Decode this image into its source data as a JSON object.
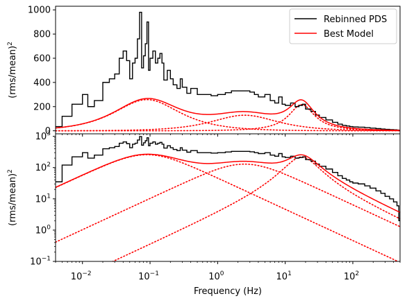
{
  "chart_data": {
    "type": "line",
    "legend": {
      "placement": "top-right",
      "entries": [
        {
          "label": "Rebinned PDS",
          "color": "#000000"
        },
        {
          "label": "Best Model",
          "color": "#ff0000"
        }
      ]
    },
    "xlabel": "Frequency (Hz)",
    "xscale": "log",
    "xlim": [
      0.004,
      500
    ],
    "xticks": [
      {
        "value": 0.01,
        "label": "10",
        "exp": "−2"
      },
      {
        "value": 0.1,
        "label": "10",
        "exp": "−1"
      },
      {
        "value": 1,
        "label": "10",
        "exp": "0"
      },
      {
        "value": 10,
        "label": "10",
        "exp": "1"
      },
      {
        "value": 100,
        "label": "10",
        "exp": "2"
      }
    ],
    "grid": false,
    "lorentzians": [
      {
        "norm": 600,
        "fwhm": 0.18,
        "centroid": 0
      },
      {
        "norm": 300,
        "fwhm": 5.0,
        "centroid": 0
      },
      {
        "norm": 140,
        "fwhm": 18,
        "centroid": 15
      }
    ],
    "model_line": {
      "name": "Best Model",
      "color": "#ff0000",
      "style": "solid"
    },
    "components_style": {
      "color": "#ff0000",
      "style": "dotted"
    },
    "data_line": {
      "name": "Rebinned PDS",
      "color": "#000000",
      "style": "steps"
    },
    "data_points": [
      [
        0.004,
        35
      ],
      [
        0.005,
        120
      ],
      [
        0.007,
        220
      ],
      [
        0.01,
        300
      ],
      [
        0.012,
        200
      ],
      [
        0.015,
        250
      ],
      [
        0.02,
        400
      ],
      [
        0.025,
        430
      ],
      [
        0.03,
        470
      ],
      [
        0.035,
        600
      ],
      [
        0.04,
        660
      ],
      [
        0.045,
        580
      ],
      [
        0.05,
        430
      ],
      [
        0.055,
        560
      ],
      [
        0.06,
        600
      ],
      [
        0.065,
        760
      ],
      [
        0.07,
        980
      ],
      [
        0.075,
        520
      ],
      [
        0.08,
        620
      ],
      [
        0.085,
        720
      ],
      [
        0.09,
        900
      ],
      [
        0.095,
        500
      ],
      [
        0.1,
        600
      ],
      [
        0.11,
        660
      ],
      [
        0.12,
        560
      ],
      [
        0.13,
        600
      ],
      [
        0.14,
        640
      ],
      [
        0.15,
        560
      ],
      [
        0.16,
        420
      ],
      [
        0.18,
        500
      ],
      [
        0.2,
        430
      ],
      [
        0.22,
        380
      ],
      [
        0.25,
        350
      ],
      [
        0.28,
        430
      ],
      [
        0.3,
        360
      ],
      [
        0.35,
        310
      ],
      [
        0.4,
        350
      ],
      [
        0.5,
        300
      ],
      [
        0.6,
        300
      ],
      [
        0.8,
        290
      ],
      [
        1.0,
        300
      ],
      [
        1.3,
        315
      ],
      [
        1.6,
        330
      ],
      [
        2.0,
        330
      ],
      [
        2.5,
        330
      ],
      [
        3.0,
        320
      ],
      [
        3.5,
        300
      ],
      [
        4.0,
        280
      ],
      [
        5.0,
        300
      ],
      [
        6.0,
        250
      ],
      [
        7.0,
        230
      ],
      [
        8.0,
        280
      ],
      [
        9.0,
        220
      ],
      [
        10,
        210
      ],
      [
        12,
        230
      ],
      [
        14,
        200
      ],
      [
        16,
        210
      ],
      [
        18,
        220
      ],
      [
        20,
        180
      ],
      [
        24,
        160
      ],
      [
        28,
        130
      ],
      [
        32,
        110
      ],
      [
        40,
        90
      ],
      [
        50,
        70
      ],
      [
        60,
        55
      ],
      [
        70,
        45
      ],
      [
        80,
        40
      ],
      [
        90,
        35
      ],
      [
        100,
        32
      ],
      [
        120,
        30
      ],
      [
        150,
        26
      ],
      [
        180,
        22
      ],
      [
        220,
        18
      ],
      [
        260,
        15
      ],
      [
        300,
        12
      ],
      [
        350,
        10
      ],
      [
        400,
        8
      ],
      [
        450,
        6
      ],
      [
        480,
        2
      ],
      [
        500,
        4
      ]
    ],
    "panels": [
      {
        "id": "linear",
        "ylabel": "(rms/mean)",
        "ylabel_sup": "2",
        "yscale": "linear",
        "ylim": [
          -25,
          1030
        ],
        "yticks": [
          0,
          200,
          400,
          600,
          800,
          1000
        ]
      },
      {
        "id": "log",
        "ylabel": "(rms/mean)",
        "ylabel_sup": "2",
        "yscale": "log",
        "ylim": [
          0.1,
          1200
        ],
        "yticks": [
          {
            "value": 0.1,
            "label": "10",
            "exp": "−1"
          },
          {
            "value": 1,
            "label": "10",
            "exp": "0"
          },
          {
            "value": 10,
            "label": "10",
            "exp": "1"
          },
          {
            "value": 100,
            "label": "10",
            "exp": "2"
          },
          {
            "value": 1000,
            "label": "10",
            "exp": "3"
          }
        ]
      }
    ]
  }
}
